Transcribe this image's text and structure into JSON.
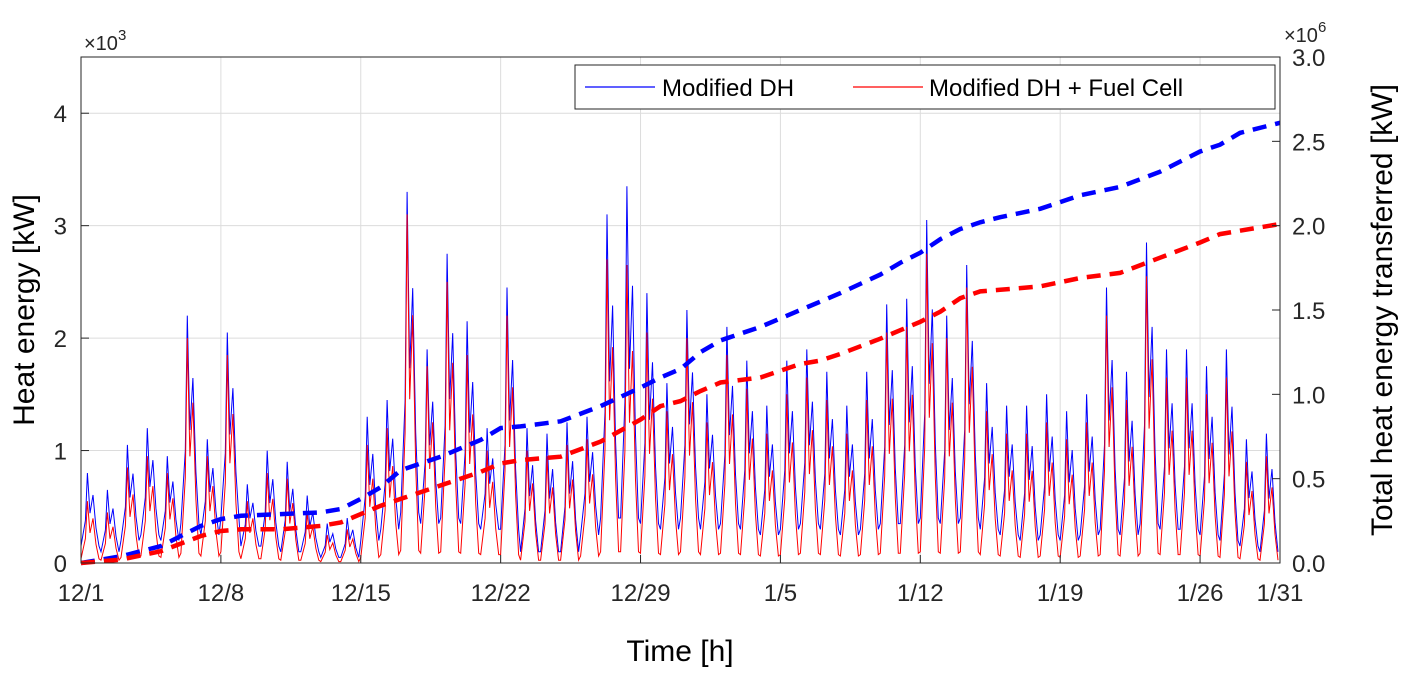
{
  "chart_data": {
    "type": "line",
    "xlabel": "Time [h]",
    "ylabel_left": "Heat energy [kW]",
    "ylabel_right": "Total heat energy transferred [kW]",
    "left_exponent": "×10",
    "left_exponent_power": "3",
    "right_exponent": "×10",
    "right_exponent_power": "6",
    "xlim": [
      0,
      60
    ],
    "x_ticks": [
      0,
      7,
      14,
      21,
      28,
      35,
      42,
      49,
      56,
      60
    ],
    "x_tick_labels": [
      "12/1",
      "12/8",
      "12/15",
      "12/22",
      "12/29",
      "1/5",
      "1/12",
      "1/19",
      "1/26",
      "1/31"
    ],
    "ylim_left": [
      0,
      4.5
    ],
    "y_ticks_left": [
      0,
      1,
      2,
      3,
      4
    ],
    "y_tick_labels_left": [
      "0",
      "1",
      "2",
      "3",
      "4"
    ],
    "ylim_right": [
      0,
      3.0
    ],
    "y_ticks_right": [
      0,
      0.5,
      1.0,
      1.5,
      2.0,
      2.5,
      3.0
    ],
    "y_tick_labels_right": [
      "0.0",
      "0.5",
      "1.0",
      "1.5",
      "2.0",
      "2.5",
      "3.0"
    ],
    "grid": true,
    "legend": {
      "placement": "top-right",
      "entries": [
        {
          "name": "Modified DH",
          "color": "#0000ff"
        },
        {
          "name": "Modified DH + Fuel Cell",
          "color": "#ff0000"
        }
      ]
    },
    "daily_peaks_modified_dh": [
      0.8,
      0.65,
      1.05,
      1.2,
      0.95,
      2.2,
      1.1,
      2.05,
      0.7,
      1.0,
      0.9,
      0.6,
      0.35,
      0.4,
      1.3,
      1.45,
      3.3,
      1.9,
      2.75,
      2.15,
      1.2,
      2.45,
      1.2,
      1.15,
      1.25,
      1.3,
      3.1,
      3.35,
      2.4,
      1.6,
      2.25,
      1.5,
      2.1,
      1.8,
      1.4,
      1.8,
      1.9,
      1.7,
      1.4,
      1.7,
      2.3,
      2.35,
      3.05,
      2.2,
      2.65,
      1.6,
      1.4,
      1.4,
      1.5,
      1.35,
      1.5,
      2.45,
      1.7,
      2.85,
      1.9,
      1.9,
      1.75,
      1.9,
      1.1,
      1.15
    ],
    "daily_peaks_fuel_cell": [
      0.55,
      0.45,
      0.85,
      0.95,
      0.8,
      2.0,
      0.95,
      1.85,
      0.55,
      0.8,
      0.75,
      0.45,
      0.25,
      0.3,
      1.05,
      1.2,
      3.1,
      1.75,
      2.5,
      1.85,
      1.0,
      2.2,
      1.0,
      0.95,
      1.05,
      1.1,
      2.7,
      2.65,
      2.05,
      1.35,
      2.0,
      1.25,
      1.85,
      1.55,
      1.15,
      1.5,
      1.65,
      1.45,
      1.15,
      1.45,
      2.05,
      2.1,
      2.75,
      2.0,
      2.45,
      1.35,
      1.15,
      1.15,
      1.25,
      1.1,
      1.25,
      2.2,
      1.45,
      2.55,
      1.65,
      1.65,
      1.5,
      1.65,
      0.9,
      0.95
    ],
    "daily_mins_modified_dh": [
      0.15,
      0.1,
      0.2,
      0.25,
      0.2,
      0.35,
      0.25,
      0.4,
      0.15,
      0.15,
      0.1,
      0.1,
      0.05,
      0.05,
      0.2,
      0.3,
      0.45,
      0.35,
      0.4,
      0.35,
      0.3,
      0.3,
      0.1,
      0.1,
      0.1,
      0.25,
      0.4,
      0.4,
      0.35,
      0.3,
      0.4,
      0.3,
      0.35,
      0.3,
      0.25,
      0.3,
      0.35,
      0.3,
      0.25,
      0.3,
      0.35,
      0.35,
      0.4,
      0.35,
      0.4,
      0.3,
      0.25,
      0.2,
      0.25,
      0.2,
      0.25,
      0.3,
      0.25,
      0.35,
      0.3,
      0.3,
      0.25,
      0.2,
      0.15,
      0.1
    ],
    "cumulative_x": [
      0,
      2,
      4,
      6,
      7,
      8,
      10,
      12,
      13,
      14,
      15,
      16,
      18,
      20,
      21,
      22,
      24,
      26,
      28,
      29,
      30,
      31,
      32,
      34,
      36,
      37,
      38,
      40,
      41,
      42,
      43,
      44,
      45,
      46,
      48,
      50,
      52,
      54,
      56,
      57,
      58,
      60
    ],
    "cumulative_modified_dh": [
      0,
      0.04,
      0.1,
      0.22,
      0.26,
      0.28,
      0.29,
      0.3,
      0.32,
      0.38,
      0.45,
      0.55,
      0.63,
      0.73,
      0.8,
      0.81,
      0.84,
      0.93,
      1.04,
      1.1,
      1.15,
      1.25,
      1.32,
      1.4,
      1.5,
      1.55,
      1.6,
      1.71,
      1.78,
      1.84,
      1.92,
      1.98,
      2.02,
      2.05,
      2.1,
      2.18,
      2.23,
      2.32,
      2.44,
      2.48,
      2.55,
      2.61
    ],
    "cumulative_fuel_cell": [
      0,
      0.02,
      0.07,
      0.16,
      0.19,
      0.2,
      0.2,
      0.22,
      0.24,
      0.29,
      0.34,
      0.38,
      0.46,
      0.54,
      0.59,
      0.61,
      0.63,
      0.72,
      0.85,
      0.93,
      0.96,
      1.02,
      1.07,
      1.1,
      1.18,
      1.2,
      1.24,
      1.33,
      1.38,
      1.43,
      1.49,
      1.57,
      1.61,
      1.62,
      1.64,
      1.69,
      1.72,
      1.81,
      1.9,
      1.95,
      1.97,
      2.01
    ]
  }
}
